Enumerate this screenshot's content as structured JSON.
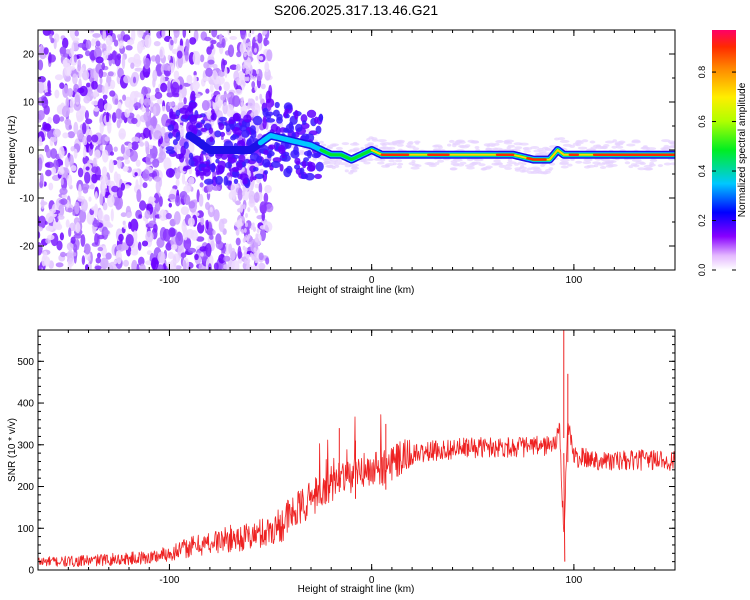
{
  "title": "S206.2025.317.13.46.G21",
  "chart_data": [
    {
      "type": "heatmap",
      "name": "spectrogram",
      "xlabel": "Height of straight line (km)",
      "ylabel": "Frequency (Hz)",
      "xlim": [
        -165,
        150
      ],
      "ylim": [
        -25,
        25
      ],
      "xticks": [
        -100,
        0,
        100
      ],
      "yticks": [
        -20,
        -10,
        0,
        10,
        20
      ],
      "colorbar": {
        "label": "Normalized spectral amplitude",
        "range": [
          0,
          0.97
        ],
        "ticks": [
          0.0,
          0.2,
          0.4,
          0.6,
          0.8
        ]
      },
      "ridge": {
        "x": [
          -100,
          -90,
          -80,
          -70,
          -60,
          -50,
          -40,
          -30,
          -25,
          -20,
          -15,
          -10,
          -5,
          0,
          5,
          10,
          20,
          30,
          40,
          50,
          60,
          70,
          80,
          88,
          92,
          95,
          100,
          110,
          120,
          130,
          140,
          150
        ],
        "y": [
          1,
          3,
          0,
          0,
          0,
          3,
          2,
          1,
          0,
          -1,
          -1,
          -2,
          -1,
          0,
          -1,
          -1,
          -1,
          -1,
          -1,
          -1,
          -1,
          -1,
          -2,
          -2,
          0,
          -1,
          -1,
          -1,
          -1,
          -1,
          -1,
          -1
        ]
      }
    },
    {
      "type": "line",
      "name": "snr",
      "xlabel": "Height of straight line (km)",
      "ylabel": "SNR (10 * v/v)",
      "xlim": [
        -165,
        150
      ],
      "ylim": [
        0,
        575
      ],
      "xticks": [
        -100,
        0,
        100
      ],
      "yticks": [
        0,
        100,
        200,
        300,
        400,
        500
      ],
      "color": "#ee2222",
      "series": [
        {
          "name": "SNR",
          "x": [
            -165,
            -150,
            -130,
            -110,
            -100,
            -90,
            -80,
            -70,
            -60,
            -50,
            -45,
            -40,
            -35,
            -30,
            -25,
            -20,
            -15,
            -10,
            -5,
            0,
            5,
            10,
            15,
            20,
            30,
            40,
            50,
            60,
            70,
            80,
            90,
            93,
            95,
            97,
            100,
            110,
            120,
            130,
            140,
            150
          ],
          "values": [
            20,
            20,
            25,
            30,
            40,
            55,
            65,
            75,
            80,
            95,
            110,
            130,
            150,
            170,
            190,
            205,
            215,
            225,
            235,
            240,
            245,
            255,
            265,
            275,
            285,
            290,
            293,
            295,
            295,
            295,
            300,
            330,
            80,
            360,
            270,
            265,
            260,
            262,
            265,
            262
          ]
        }
      ]
    }
  ]
}
